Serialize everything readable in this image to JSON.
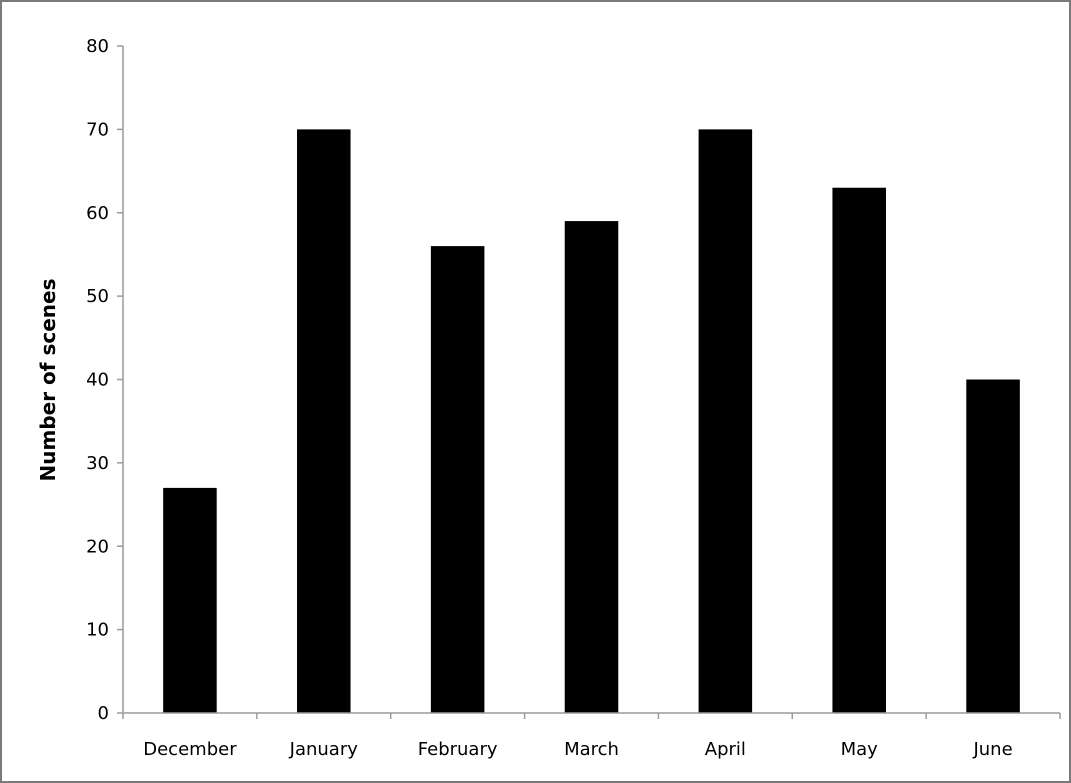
{
  "chart_data": {
    "type": "bar",
    "title": "",
    "xlabel": "",
    "ylabel": "Number of scenes",
    "categories": [
      "December",
      "January",
      "February",
      "March",
      "April",
      "May",
      "June"
    ],
    "values": [
      27,
      70,
      56,
      59,
      70,
      63,
      40
    ],
    "ylim": [
      0,
      80
    ],
    "yticks": [
      "0",
      "10",
      "20",
      "30",
      "40",
      "50",
      "60",
      "70",
      "80"
    ],
    "grid": false,
    "legend": "none",
    "colors": {
      "bar": "#000000",
      "axis": "#9a9a9a",
      "frame": "#7a7a7a",
      "text": "#000000"
    }
  }
}
